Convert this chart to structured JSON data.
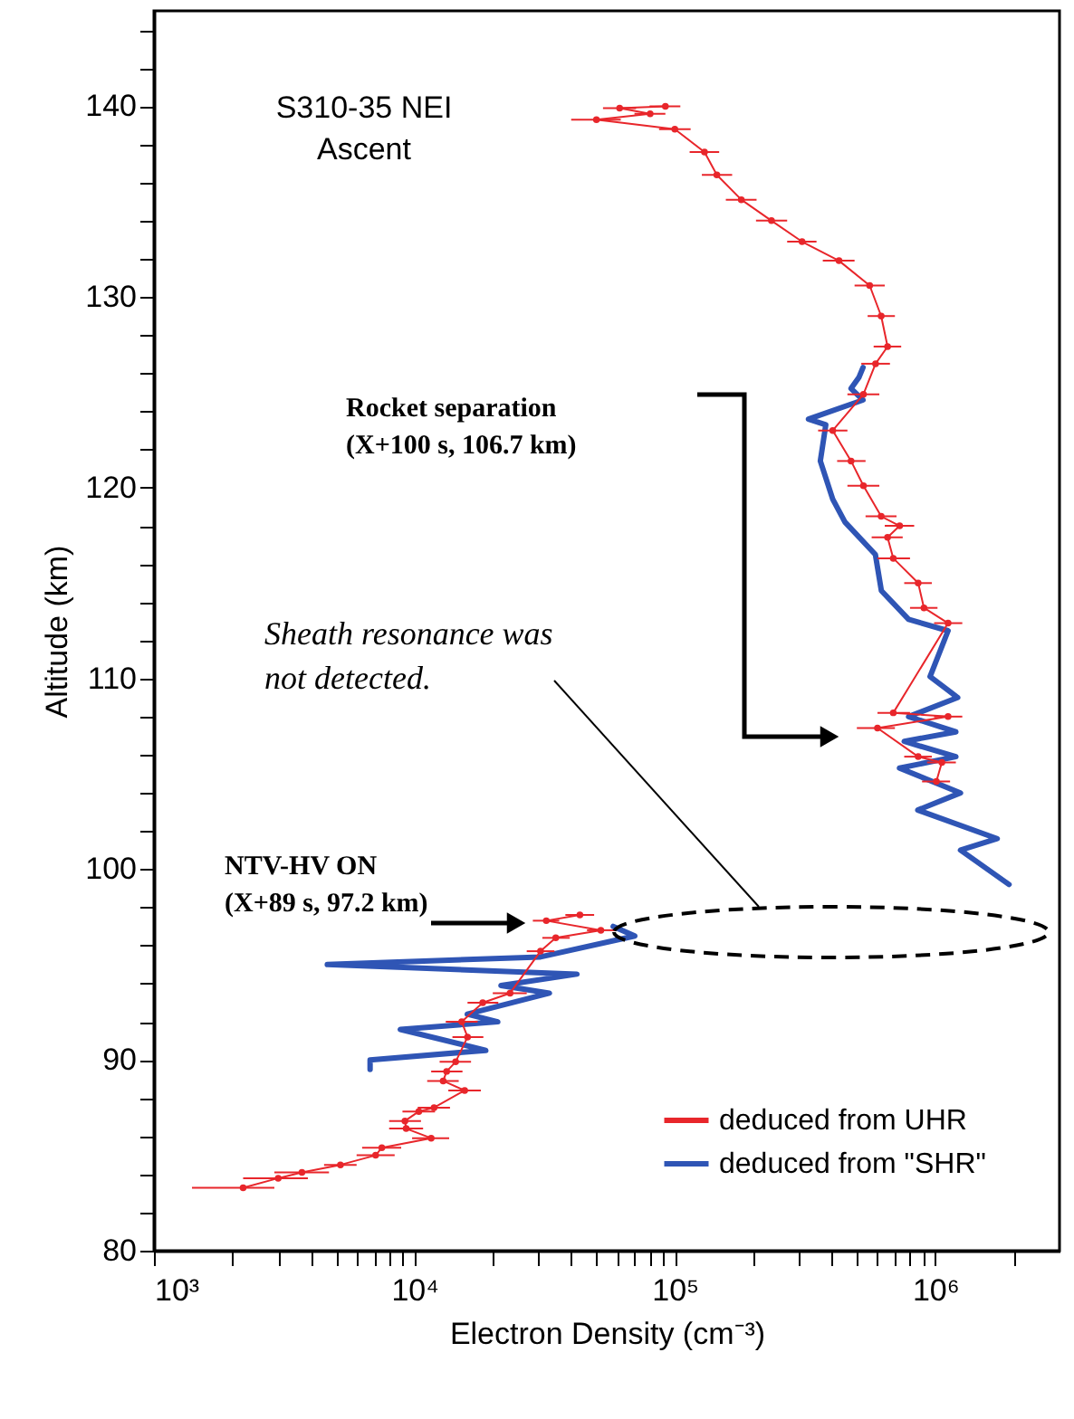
{
  "chart_data": {
    "type": "line",
    "xlabel": "Electron Density (cm⁻³)",
    "ylabel": "Altitude (km)",
    "log": "x",
    "grid": false,
    "legend": "bottom right",
    "line_style": "solid",
    "xlim": [
      1000,
      3000000
    ],
    "ylim": [
      80,
      145
    ],
    "xticks": [
      {
        "value": 1000,
        "label": "10³"
      },
      {
        "value": 2000,
        "label": null
      },
      {
        "value": 3000,
        "label": null
      },
      {
        "value": 4000,
        "label": null
      },
      {
        "value": 5000,
        "label": null
      },
      {
        "value": 6000,
        "label": null
      },
      {
        "value": 7000,
        "label": null
      },
      {
        "value": 8000,
        "label": null
      },
      {
        "value": 9000,
        "label": null
      },
      {
        "value": 10000,
        "label": "10⁴"
      },
      {
        "value": 20000,
        "label": null
      },
      {
        "value": 30000,
        "label": null
      },
      {
        "value": 40000,
        "label": null
      },
      {
        "value": 50000,
        "label": null
      },
      {
        "value": 60000,
        "label": null
      },
      {
        "value": 70000,
        "label": null
      },
      {
        "value": 80000,
        "label": null
      },
      {
        "value": 90000,
        "label": null
      },
      {
        "value": 100000,
        "label": "10⁵"
      },
      {
        "value": 200000,
        "label": null
      },
      {
        "value": 300000,
        "label": null
      },
      {
        "value": 400000,
        "label": null
      },
      {
        "value": 500000,
        "label": null
      },
      {
        "value": 600000,
        "label": null
      },
      {
        "value": 700000,
        "label": null
      },
      {
        "value": 800000,
        "label": null
      },
      {
        "value": 900000,
        "label": null
      },
      {
        "value": 1000000,
        "label": "10⁶"
      },
      {
        "value": 2000000,
        "label": null
      }
    ],
    "yticks": [
      80,
      {
        "value": 82,
        "label": null
      },
      {
        "value": 84,
        "label": null
      },
      {
        "value": 86,
        "label": null
      },
      {
        "value": 88,
        "label": null
      },
      90,
      {
        "value": 92,
        "label": null
      },
      {
        "value": 94,
        "label": null
      },
      {
        "value": 96,
        "label": null
      },
      {
        "value": 98,
        "label": null
      },
      100,
      {
        "value": 102,
        "label": null
      },
      {
        "value": 104,
        "label": null
      },
      {
        "value": 106,
        "label": null
      },
      {
        "value": 108,
        "label": null
      },
      110,
      {
        "value": 112,
        "label": null
      },
      {
        "value": 114,
        "label": null
      },
      {
        "value": 116,
        "label": null
      },
      {
        "value": 118,
        "label": null
      },
      120,
      {
        "value": 122,
        "label": null
      },
      {
        "value": 124,
        "label": null
      },
      {
        "value": 126,
        "label": null
      },
      {
        "value": 128,
        "label": null
      },
      130,
      {
        "value": 132,
        "label": null
      },
      {
        "value": 134,
        "label": null
      },
      {
        "value": 136,
        "label": null
      },
      {
        "value": 138,
        "label": null
      },
      140,
      {
        "value": 142,
        "label": null
      },
      {
        "value": 144,
        "label": null
      }
    ],
    "annotations": [
      "S310-35  NEI\nAscent",
      "Rocket separation\n(X+100 s, 106.7 km)",
      "NTV-HV ON\n(X+89 s, 97.2 km)",
      "Sheath resonance was\nnot detected."
    ],
    "series": [
      {
        "name": "deduced from UHR",
        "color": "#e8262b",
        "marker": "circle",
        "x": [
          2200,
          3000,
          3700,
          5200,
          7100,
          7500,
          11600,
          9300,
          9200,
          10400,
          11900,
          15600,
          12900,
          13300,
          14400,
          16000,
          15200,
          18300,
          23300,
          30500,
          34900,
          52000,
          32100,
          43200,
          null,
          1010000,
          1060000,
          860000,
          600000,
          1120000,
          690000,
          1120000,
          905000,
          860000,
          690000,
          656000,
          730000,
          620000,
          530000,
          475000,
          404000,
          530000,
          590000,
          656000,
          620000,
          560000,
          427000,
          308000,
          235000,
          180000,
          145000,
          130000,
          100000,
          50000,
          80400,
          61400,
          92000
        ],
        "values": [
          83.3,
          83.8,
          84.1,
          84.5,
          85.0,
          85.4,
          85.9,
          86.4,
          86.8,
          87.3,
          87.5,
          88.4,
          88.9,
          89.4,
          89.9,
          91.2,
          92.0,
          93.0,
          93.5,
          95.7,
          96.4,
          96.8,
          97.3,
          97.6,
          null,
          104.6,
          105.6,
          105.9,
          107.4,
          108.0,
          108.2,
          112.9,
          113.7,
          115.0,
          116.3,
          117.4,
          118.0,
          118.5,
          120.1,
          121.4,
          123.0,
          124.9,
          126.5,
          127.4,
          129.0,
          130.6,
          131.9,
          132.9,
          134.0,
          135.1,
          136.4,
          137.6,
          138.8,
          139.3,
          139.6,
          139.9,
          140.0
        ],
        "xerrors": [
          [
            1400,
            2900
          ],
          [
            2200,
            3900
          ],
          [
            2900,
            4700
          ],
          [
            4500,
            6000
          ],
          [
            6000,
            8400
          ],
          [
            6300,
            8900
          ],
          [
            9800,
            13600
          ],
          [
            8000,
            10800
          ],
          [
            8000,
            10600
          ],
          [
            9000,
            12000
          ],
          [
            10300,
            13700
          ],
          [
            13500,
            18000
          ],
          [
            11200,
            14800
          ],
          [
            11600,
            15300
          ],
          [
            12500,
            16500
          ],
          [
            14000,
            18400
          ],
          [
            13200,
            17500
          ],
          [
            16000,
            21000
          ],
          [
            20000,
            27000
          ],
          [
            27000,
            34500
          ],
          [
            31000,
            39500
          ],
          [
            46000,
            59000
          ],
          [
            28500,
            36000
          ],
          [
            38000,
            49000
          ],
          null,
          [
            890000,
            1140000
          ],
          [
            930000,
            1200000
          ],
          [
            760000,
            970000
          ],
          [
            500000,
            700000
          ],
          [
            990000,
            1270000
          ],
          [
            600000,
            800000
          ],
          [
            990000,
            1270000
          ],
          [
            800000,
            1020000
          ],
          [
            760000,
            970000
          ],
          [
            600000,
            800000
          ],
          [
            570000,
            750000
          ],
          [
            640000,
            830000
          ],
          [
            540000,
            710000
          ],
          [
            460000,
            610000
          ],
          [
            420000,
            540000
          ],
          [
            355000,
            460000
          ],
          [
            460000,
            610000
          ],
          [
            520000,
            670000
          ],
          [
            580000,
            740000
          ],
          [
            550000,
            700000
          ],
          [
            490000,
            640000
          ],
          [
            370000,
            490000
          ],
          [
            270000,
            350000
          ],
          [
            205000,
            270000
          ],
          [
            157000,
            206000
          ],
          [
            127000,
            166000
          ],
          [
            114000,
            148000
          ],
          [
            87000,
            115000
          ],
          [
            40000,
            62000
          ],
          [
            70000,
            92000
          ],
          [
            53000,
            71000
          ],
          [
            80000,
            105000
          ]
        ]
      },
      {
        "name": "deduced from \"SHR\"",
        "color": "#2f55b5",
        "marker": "none",
        "x": [
          6760,
          6760,
          18800,
          8830,
          20900,
          15960,
          33000,
          21500,
          42100,
          4630,
          30500,
          70200,
          58000,
          null,
          1920000,
          1250000,
          1730000,
          857000,
          1250000,
          729000,
          1200000,
          760000,
          1200000,
          790000,
          1220000,
          955000,
          1120000,
          790000,
          621000,
          589000,
          450000,
          404000,
          362000,
          380000,
          326000,
          528000,
          475000,
          510000,
          528000
        ],
        "values": [
          89.5,
          90.0,
          90.5,
          91.6,
          92.0,
          92.4,
          93.5,
          93.9,
          94.5,
          95.0,
          95.4,
          96.5,
          97.0,
          null,
          99.2,
          101.0,
          101.6,
          103.1,
          104.0,
          105.3,
          105.9,
          106.7,
          107.2,
          108.0,
          109.0,
          110.1,
          112.5,
          113.1,
          114.6,
          116.5,
          118.2,
          119.4,
          121.4,
          123.3,
          123.6,
          124.6,
          125.2,
          125.8,
          126.3
        ]
      }
    ]
  }
}
